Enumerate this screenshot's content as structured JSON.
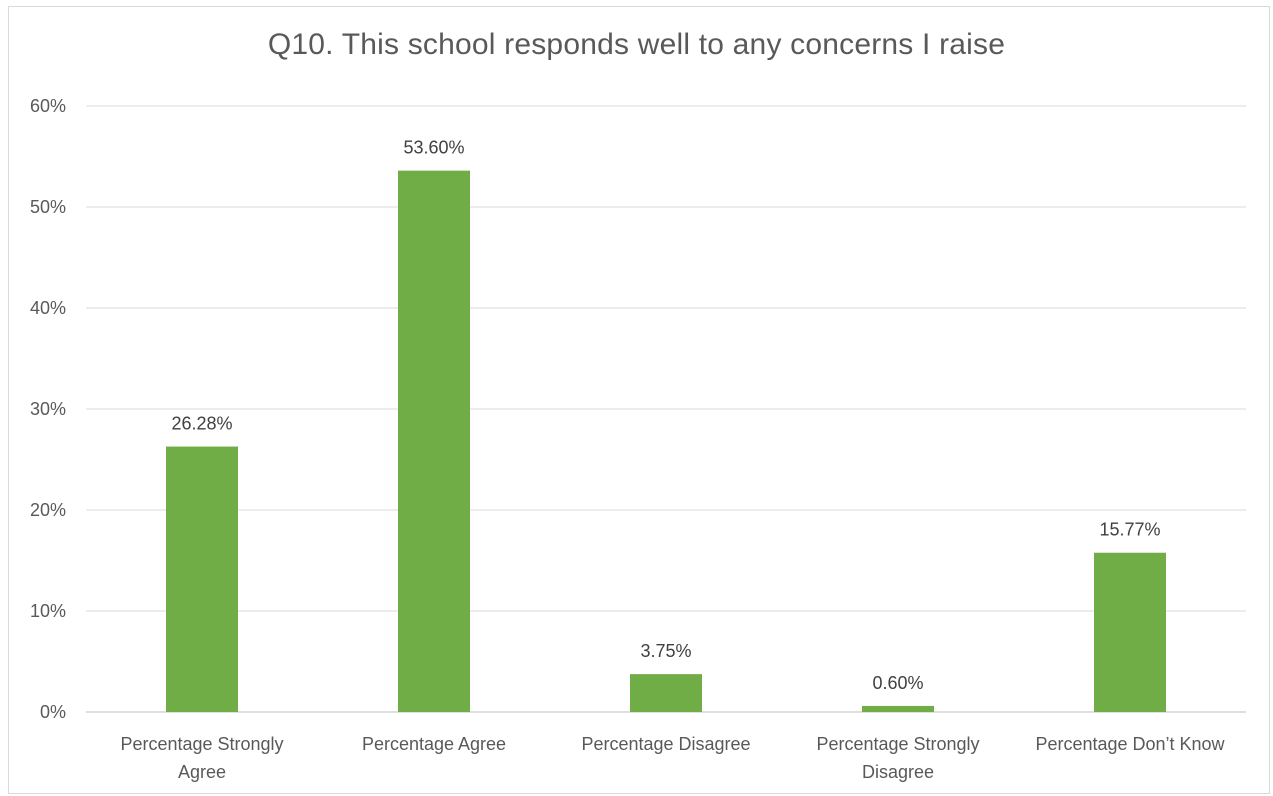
{
  "chart_data": {
    "type": "bar",
    "title": "Q10. This school responds well to any concerns I raise",
    "categories": [
      [
        "Percentage Strongly",
        "Agree"
      ],
      [
        "Percentage Agree"
      ],
      [
        "Percentage Disagree"
      ],
      [
        "Percentage Strongly",
        "Disagree"
      ],
      [
        "Percentage Don’t Know"
      ]
    ],
    "values": [
      26.28,
      53.6,
      3.75,
      0.6,
      15.77
    ],
    "data_labels": [
      "26.28%",
      "53.60%",
      "3.75%",
      "0.60%",
      "15.77%"
    ],
    "yticks": [
      "0%",
      "10%",
      "20%",
      "30%",
      "40%",
      "50%",
      "60%"
    ],
    "ylim": [
      0,
      60
    ],
    "grid": true,
    "legend": "none",
    "bar_color": "#70ad47",
    "grid_color": "#d9d9d9",
    "text_color": "#595959"
  }
}
